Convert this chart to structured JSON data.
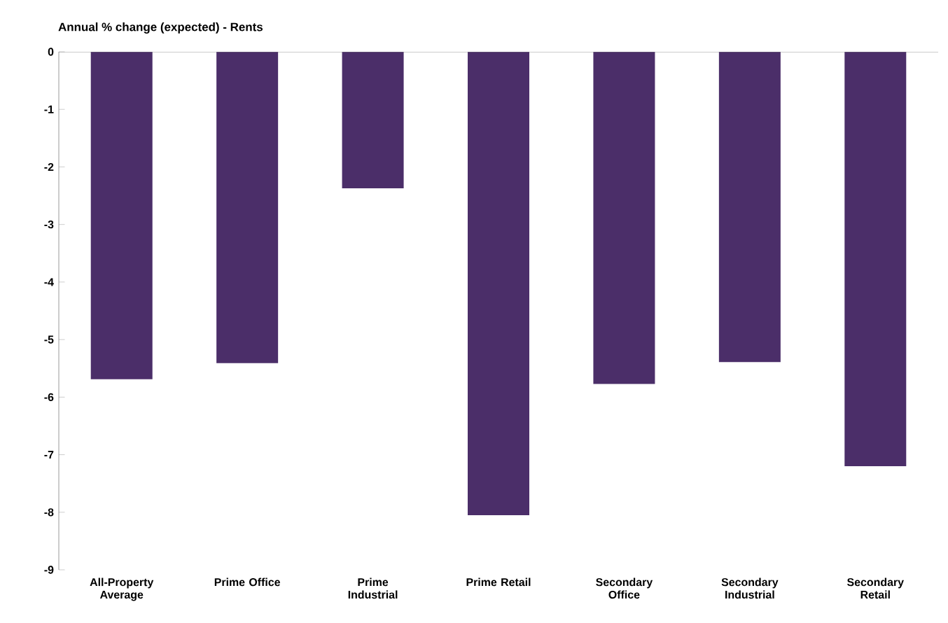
{
  "chart_data": {
    "type": "bar",
    "title": "Annual % change (expected) - Rents",
    "categories": [
      "All-Property Average",
      "Prime Office",
      "Prime Industrial",
      "Prime Retail",
      "Secondary Office",
      "Secondary Industrial",
      "Secondary Retail"
    ],
    "values": [
      -5.69,
      -5.41,
      -2.37,
      -8.05,
      -5.77,
      -5.39,
      -7.2
    ],
    "color": "#4b2e69",
    "ylim": [
      -9,
      0
    ],
    "yticks": [
      -9,
      -8,
      -7,
      -6,
      -5,
      -4,
      -3,
      -2,
      -1,
      0
    ],
    "grid": false
  }
}
